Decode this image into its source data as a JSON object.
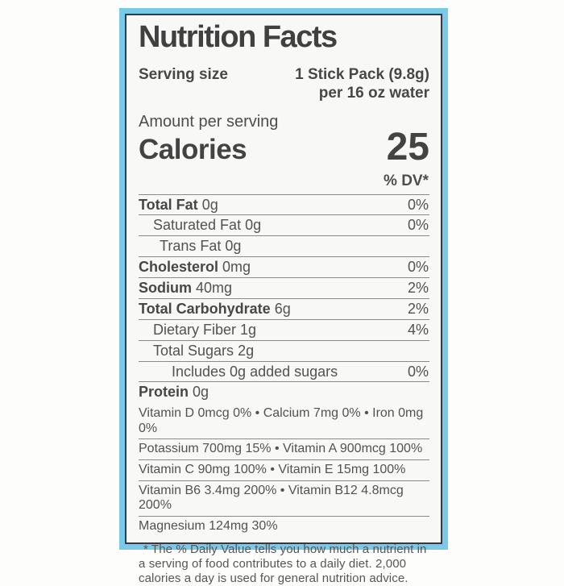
{
  "label": {
    "title": "Nutrition Facts",
    "serving": {
      "label": "Serving size",
      "value_line1": "1 Stick Pack (9.8g)",
      "value_line2": "per 16 oz water"
    },
    "calories": {
      "amount_per_serving": "Amount per serving",
      "label": "Calories",
      "value": "25"
    },
    "dv_header": "% DV*",
    "nutrients": [
      {
        "name": "Total Fat",
        "amount": "0g",
        "dv": "0%"
      },
      {
        "name": "Saturated Fat",
        "amount": "0g",
        "dv": "0%"
      },
      {
        "name": "Trans Fat",
        "amount": "0g",
        "dv": ""
      },
      {
        "name": "Cholesterol",
        "amount": "0mg",
        "dv": "0%"
      },
      {
        "name": "Sodium",
        "amount": "40mg",
        "dv": "2%"
      },
      {
        "name": "Total Carbohydrate",
        "amount": "6g",
        "dv": "2%"
      },
      {
        "name": "Dietary Fiber",
        "amount": "1g",
        "dv": "4%"
      },
      {
        "name": "Total Sugars",
        "amount": "2g",
        "dv": ""
      },
      {
        "name": "Includes 0g added sugars",
        "amount": "",
        "dv": "0%"
      },
      {
        "name": "Protein",
        "amount": "0g",
        "dv": ""
      }
    ],
    "micronutrients": [
      "Vitamin D 0mcg 0% • Calcium 7mg 0% • Iron 0mg 0%",
      "Potassium 700mg 15% • Vitamin A 900mcg 100%",
      "Vitamin C 90mg 100% • Vitamin E 15mg 100%",
      "Vitamin B6 3.4mg 200% • Vitamin B12 4.8mcg 200%",
      "Magnesium 124mg 30%"
    ],
    "footnote": "* The % Daily Value tells you how much a nutrient in a serving of food contributes to a daily diet. 2,000 calories a day is used for general nutrition advice."
  },
  "colors": {
    "frame_blue": "#7bc9e9",
    "border_dark": "#333a45",
    "label_background": "#f8f8f6",
    "ink": "#474747",
    "bar": "#4a4a4a"
  }
}
